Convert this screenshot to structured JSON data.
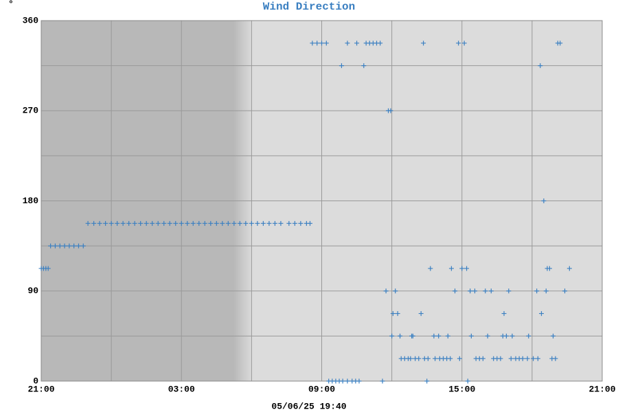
{
  "chart_data": {
    "type": "scatter",
    "title": "Wind Direction",
    "unit_mark": "°",
    "footer": "05/06/25 19:40",
    "color": "#3a7fc1",
    "grid": true,
    "xlim": [
      0,
      24
    ],
    "xticks": [
      {
        "value": 0,
        "label": "21:00"
      },
      {
        "value": 6,
        "label": "03:00"
      },
      {
        "value": 12,
        "label": "09:00"
      },
      {
        "value": 18,
        "label": "15:00"
      },
      {
        "value": 24,
        "label": "21:00"
      }
    ],
    "xminor": [
      3,
      9,
      15,
      21
    ],
    "ylim": [
      0,
      360
    ],
    "yticks": [
      0,
      90,
      180,
      270,
      360
    ],
    "yminor": [
      45,
      135,
      225,
      315
    ],
    "x": [
      0,
      0.1,
      0.2,
      0.3,
      0.4,
      0.6,
      0.8,
      1,
      1.2,
      1.4,
      1.6,
      1.8,
      2,
      2.25,
      2.5,
      2.75,
      3,
      3.25,
      3.5,
      3.75,
      4,
      4.25,
      4.5,
      4.75,
      5,
      5.25,
      5.5,
      5.75,
      6,
      6.25,
      6.5,
      6.75,
      7,
      7.25,
      7.5,
      7.75,
      8,
      8.25,
      8.5,
      8.75,
      9,
      9.25,
      9.5,
      9.75,
      10,
      10.25,
      10.6,
      10.85,
      11.1,
      11.35,
      11.5,
      11.6,
      11.8,
      12.0,
      12.2,
      13.1,
      13.5,
      13.9,
      14.05,
      14.2,
      14.35,
      14.5,
      16.35,
      17.85,
      18.1,
      22.1,
      22.2,
      12.3,
      12.45,
      12.6,
      12.75,
      12.9,
      13.1,
      13.3,
      13.45,
      13.6,
      14.6,
      16.5,
      18.25,
      12.85,
      13.8,
      21.35,
      14.85,
      14.95,
      21.5,
      16.65,
      17.55,
      18.0,
      18.2,
      21.65,
      21.75,
      22.6,
      14.75,
      15.15,
      17.7,
      18.35,
      18.55,
      19.0,
      19.25,
      20.0,
      21.2,
      21.6,
      22.4,
      15.05,
      15.25,
      16.25,
      19.8,
      21.4,
      15.0,
      15.35,
      15.85,
      15.9,
      16.8,
      17.0,
      17.4,
      18.4,
      19.1,
      19.75,
      19.9,
      20.15,
      20.85,
      21.9,
      15.4,
      15.55,
      15.7,
      15.8,
      16.0,
      16.15,
      16.4,
      16.55,
      16.85,
      17.05,
      17.2,
      17.35,
      17.5,
      17.9,
      18.6,
      18.75,
      18.9,
      19.35,
      19.5,
      19.65,
      20.1,
      20.3,
      20.45,
      20.6,
      20.8,
      21.05,
      21.25,
      21.85,
      22.0
    ],
    "values": [
      112.5,
      112.5,
      112.5,
      112.5,
      135,
      135,
      135,
      135,
      135,
      135,
      135,
      135,
      157.5,
      157.5,
      157.5,
      157.5,
      157.5,
      157.5,
      157.5,
      157.5,
      157.5,
      157.5,
      157.5,
      157.5,
      157.5,
      157.5,
      157.5,
      157.5,
      157.5,
      157.5,
      157.5,
      157.5,
      157.5,
      157.5,
      157.5,
      157.5,
      157.5,
      157.5,
      157.5,
      157.5,
      157.5,
      157.5,
      157.5,
      157.5,
      157.5,
      157.5,
      157.5,
      157.5,
      157.5,
      157.5,
      157.5,
      337.5,
      337.5,
      337.5,
      337.5,
      337.5,
      337.5,
      337.5,
      337.5,
      337.5,
      337.5,
      337.5,
      337.5,
      337.5,
      337.5,
      337.5,
      337.5,
      0,
      0,
      0,
      0,
      0,
      0,
      0,
      0,
      0,
      0,
      0,
      0,
      315,
      315,
      315,
      270,
      270,
      180,
      112.5,
      112.5,
      112.5,
      112.5,
      112.5,
      112.5,
      112.5,
      90,
      90,
      90,
      90,
      90,
      90,
      90,
      90,
      90,
      90,
      90,
      67.5,
      67.5,
      67.5,
      67.5,
      67.5,
      45,
      45,
      45,
      45,
      45,
      45,
      45,
      45,
      45,
      45,
      45,
      45,
      45,
      45,
      22.5,
      22.5,
      22.5,
      22.5,
      22.5,
      22.5,
      22.5,
      22.5,
      22.5,
      22.5,
      22.5,
      22.5,
      22.5,
      22.5,
      22.5,
      22.5,
      22.5,
      22.5,
      22.5,
      22.5,
      22.5,
      22.5,
      22.5,
      22.5,
      22.5,
      22.5,
      22.5,
      22.5,
      22.5
    ]
  }
}
